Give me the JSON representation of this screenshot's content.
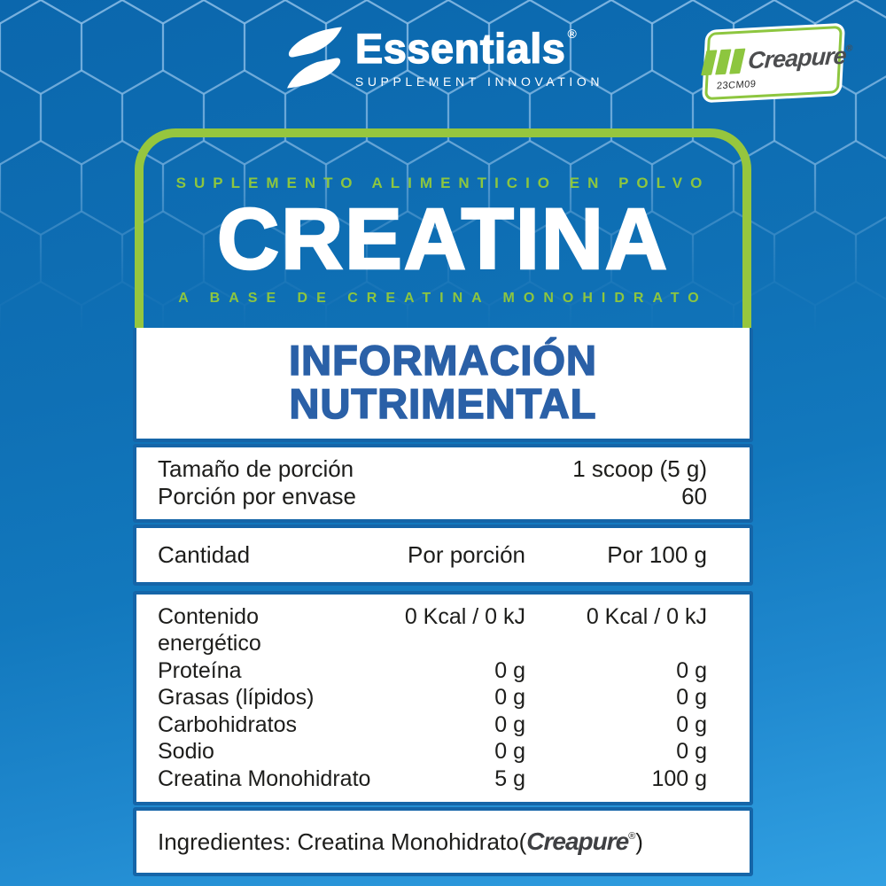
{
  "brand": {
    "name": "Essentials",
    "registered": "®",
    "tagline": "SUPPLEMENT INNOVATION"
  },
  "creapure_badge": {
    "name": "Creapure",
    "registered": "®",
    "batch_code": "23CM09"
  },
  "header": {
    "super_title": "SUPLEMENTO ALIMENTICIO EN POLVO",
    "product_name": "CREATINA",
    "sub_title": "A BASE DE CREATINA MONOHIDRATO"
  },
  "panel": {
    "title_line1": "INFORMACIÓN",
    "title_line2": "NUTRIMENTAL"
  },
  "serving": {
    "rows": [
      {
        "label": "Tamaño de porción",
        "value": "1 scoop (5 g)"
      },
      {
        "label": "Porción por envase",
        "value": "60"
      }
    ]
  },
  "table": {
    "header": {
      "col1": "Cantidad",
      "col2": "Por porción",
      "col3": "Por 100 g"
    },
    "rows": [
      {
        "label": "Contenido energético",
        "per_serving": "0 Kcal / 0 kJ",
        "per_100g": "0 Kcal / 0 kJ"
      },
      {
        "label": "Proteína",
        "per_serving": "0 g",
        "per_100g": "0 g"
      },
      {
        "label": "Grasas (lípidos)",
        "per_serving": "0 g",
        "per_100g": "0 g"
      },
      {
        "label": "Carbohidratos",
        "per_serving": "0 g",
        "per_100g": "0 g"
      },
      {
        "label": "Sodio",
        "per_serving": "0 g",
        "per_100g": "0 g"
      },
      {
        "label": "Creatina Monohidrato",
        "per_serving": "5 g",
        "per_100g": "100 g"
      }
    ]
  },
  "ingredients": {
    "prefix": "Ingredientes: Creatina Monohidrato(",
    "brand": "Creapure",
    "registered": "®",
    "suffix": ")"
  },
  "icons": {
    "brand_mark": "essentials-s-icon",
    "creapure_bars": "creapure-bars-icon"
  },
  "colors": {
    "background_top": "#0b67ad",
    "background_bottom": "#31a0e2",
    "hexagon_line": "#8fc0e8",
    "accent_green": "#96c63e",
    "title_blue": "#2a60a7",
    "card_border_blue": "#1565a8",
    "text_dark": "#1d1d1b",
    "creapure_gray": "#4c4d4f",
    "white": "#ffffff"
  }
}
